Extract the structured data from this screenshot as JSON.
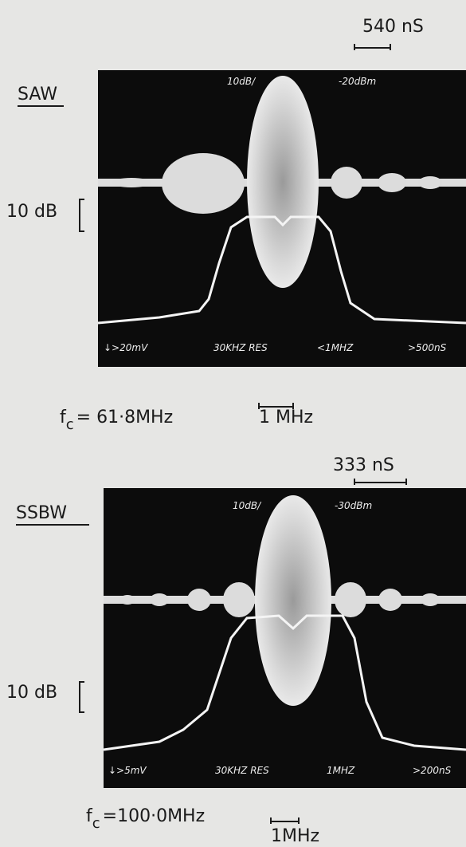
{
  "panels": [
    {
      "time_scale": "540 nS",
      "mode": "SAW",
      "vertical_scale": "10dB/",
      "reference_level": "-20dBm",
      "amplitude_scale": "10 dB",
      "screen_labels": [
        "↓>20mV",
        "30KHZ RES",
        "<1MHZ",
        ">500nS"
      ],
      "center_frequency": {
        "symbol": "f",
        "subscript": "c",
        "text": "= 61·8MHz"
      },
      "frequency_scale": "1 MHz"
    },
    {
      "time_scale": "333 nS",
      "mode": "SSBW",
      "vertical_scale": "10dB/",
      "reference_level": "-30dBm",
      "amplitude_scale": "10 dB",
      "screen_labels": [
        "↓>5mV",
        "30KHZ RES",
        "1MHZ",
        ">200nS"
      ],
      "center_frequency": {
        "symbol": "f",
        "subscript": "c",
        "text": "=100·0MHz"
      },
      "frequency_scale": "1MHz"
    }
  ]
}
